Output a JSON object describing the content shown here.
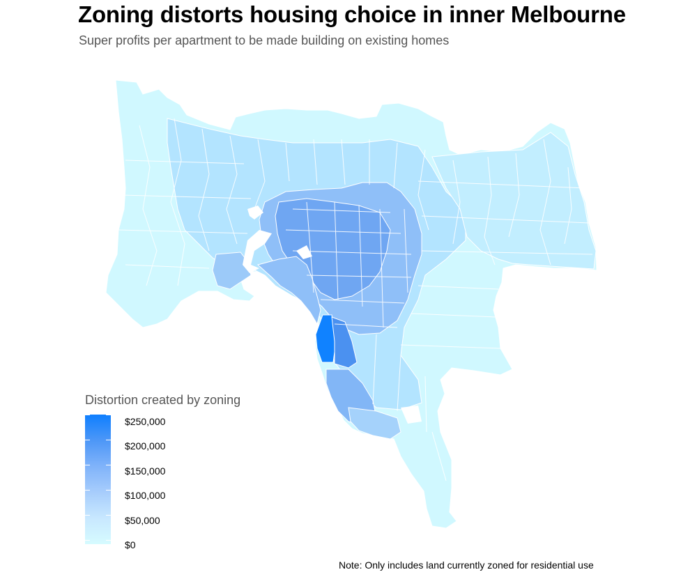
{
  "title": "Zoning distorts housing choice in inner Melbourne",
  "subtitle": "Super profits per apartment to be made building on existing homes",
  "legend": {
    "title": "Distortion created by zoning",
    "labels": [
      "$250,000",
      "$200,000",
      "$150,000",
      "$100,000",
      "$50,000",
      "$0"
    ],
    "scale_min": 0,
    "scale_max": 250000,
    "color_low": "#d6fbff",
    "color_high": "#0f7fff"
  },
  "note": "Note: Only includes land currently zoned for residential use",
  "colors": {
    "water": "#ffffff",
    "boundary": "#ffffff"
  }
}
